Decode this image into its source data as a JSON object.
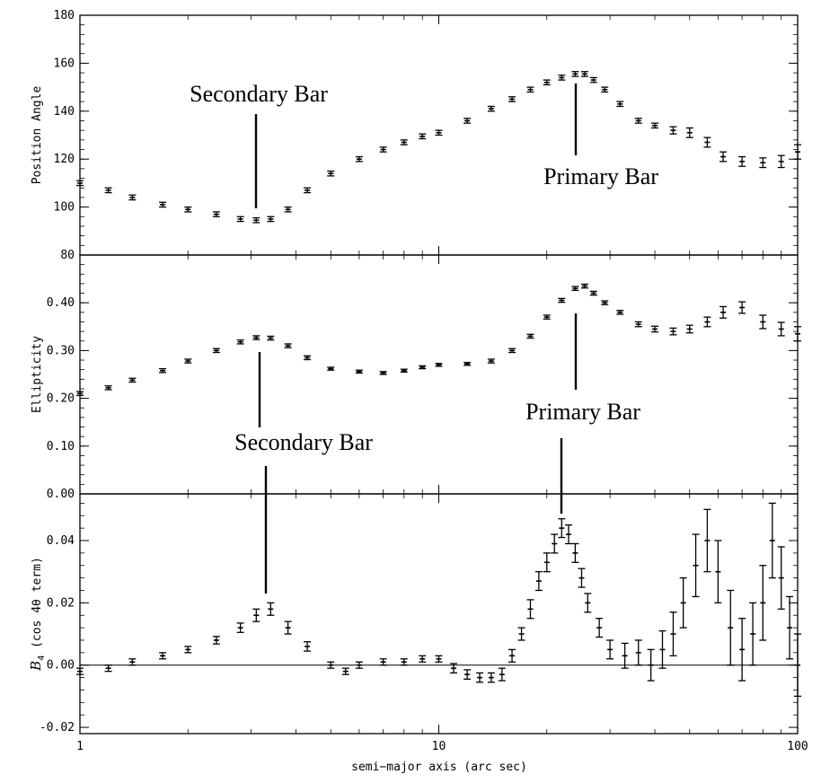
{
  "chart_data": [
    {
      "type": "scatter",
      "panel": "top",
      "ylabel": "Position Angle",
      "xlabel": "",
      "xscale": "log",
      "xlim": [
        1,
        100
      ],
      "ylim": [
        80,
        180
      ],
      "yticks": [
        "80",
        "100",
        "120",
        "140",
        "160",
        "180"
      ],
      "annotations": [
        {
          "text": "Secondary Bar",
          "x": 3.1,
          "y": 100,
          "anchor_y": 157
        },
        {
          "text": "Primary Bar",
          "x": 25,
          "y": 138,
          "anchor_y": 120
        }
      ],
      "series": [
        {
          "x": [
            1.0,
            1.2,
            1.4,
            1.7,
            2.0,
            2.4,
            2.8,
            3.1,
            3.4,
            3.8,
            4.3,
            5.0,
            6.0,
            7.0,
            8.0,
            9.0,
            10.0,
            12.0,
            14.0,
            16.0,
            18.0,
            20.0,
            22.0,
            24.0,
            25.5,
            27.0,
            29.0,
            32.0,
            36.0,
            40.0,
            45.0,
            50.0,
            56.0,
            62.0,
            70.0,
            80.0,
            90.0,
            100.0
          ],
          "y": [
            110,
            107,
            104,
            101,
            99,
            97,
            95,
            94.5,
            95,
            99,
            107,
            114,
            120,
            124,
            127,
            129.5,
            131,
            136,
            141,
            145,
            149,
            152,
            154,
            155.5,
            155.5,
            153,
            149,
            143,
            136,
            134,
            132,
            131,
            127,
            121,
            119,
            118.5,
            119,
            123
          ],
          "err": [
            1,
            1,
            1,
            1,
            1,
            1,
            1,
            1,
            1,
            1,
            1,
            1,
            1,
            1,
            1,
            1,
            1,
            1,
            1,
            1,
            1,
            1,
            1,
            1,
            1,
            1,
            1,
            1,
            1,
            1,
            1.5,
            2,
            2,
            2,
            2,
            2,
            2.5,
            3
          ]
        }
      ]
    },
    {
      "type": "scatter",
      "panel": "middle",
      "ylabel": "Ellipticity",
      "xlabel": "",
      "xscale": "log",
      "xlim": [
        1,
        100
      ],
      "ylim": [
        0.0,
        0.5
      ],
      "yticks": [
        "0.00",
        "0.10",
        "0.20",
        "0.30",
        "0.40"
      ],
      "annotations": [
        {
          "text": "Secondary Bar",
          "x": 3.1,
          "y": 0.14,
          "anchor_y": 0.3
        },
        {
          "text": "Primary Bar",
          "x": 25,
          "y": 0.22,
          "anchor_y": 0.38
        }
      ],
      "series": [
        {
          "x": [
            1.0,
            1.2,
            1.4,
            1.7,
            2.0,
            2.4,
            2.8,
            3.1,
            3.4,
            3.8,
            4.3,
            5.0,
            6.0,
            7.0,
            8.0,
            9.0,
            10.0,
            12.0,
            14.0,
            16.0,
            18.0,
            20.0,
            22.0,
            24.0,
            25.5,
            27.0,
            29.0,
            32.0,
            36.0,
            40.0,
            45.0,
            50.0,
            56.0,
            62.0,
            70.0,
            80.0,
            90.0,
            100.0
          ],
          "y": [
            0.21,
            0.222,
            0.238,
            0.258,
            0.278,
            0.3,
            0.318,
            0.327,
            0.326,
            0.31,
            0.285,
            0.262,
            0.256,
            0.253,
            0.258,
            0.265,
            0.27,
            0.272,
            0.278,
            0.3,
            0.33,
            0.37,
            0.405,
            0.43,
            0.435,
            0.42,
            0.4,
            0.38,
            0.355,
            0.345,
            0.34,
            0.345,
            0.36,
            0.38,
            0.39,
            0.36,
            0.345,
            0.335
          ],
          "err": [
            0.004,
            0.004,
            0.004,
            0.004,
            0.004,
            0.004,
            0.004,
            0.004,
            0.004,
            0.004,
            0.004,
            0.003,
            0.003,
            0.003,
            0.003,
            0.003,
            0.003,
            0.003,
            0.004,
            0.004,
            0.004,
            0.004,
            0.004,
            0.004,
            0.004,
            0.004,
            0.004,
            0.004,
            0.005,
            0.006,
            0.007,
            0.008,
            0.01,
            0.012,
            0.012,
            0.014,
            0.014,
            0.015
          ]
        }
      ]
    },
    {
      "type": "scatter",
      "panel": "bottom",
      "ylabel": "B4 (cos 4θ term)",
      "ylabel_main": "B",
      "ylabel_sub": "4",
      "ylabel_rest": " (cos 4θ term)",
      "xlabel": "semi−major axis (arc sec)",
      "xscale": "log",
      "xlim": [
        1,
        100
      ],
      "xticks": [
        "1",
        "10",
        "100"
      ],
      "ylim": [
        -0.022,
        0.055
      ],
      "yticks": [
        "-0.02",
        "0.00",
        "0.02",
        "0.04"
      ],
      "zero_line": true,
      "annotations": [
        {
          "text": "",
          "x": 3.35,
          "y": 0.027,
          "anchor_y": 0.07
        },
        {
          "text": "",
          "x": 22,
          "y": 0.054,
          "anchor_y": 0.08
        }
      ],
      "series": [
        {
          "x": [
            1.0,
            1.2,
            1.4,
            1.7,
            2.0,
            2.4,
            2.8,
            3.1,
            3.4,
            3.8,
            4.3,
            5.0,
            5.5,
            6.0,
            7.0,
            8.0,
            9.0,
            10.0,
            11.0,
            12.0,
            13.0,
            14.0,
            15.0,
            16.0,
            17.0,
            18.0,
            19.0,
            20.0,
            21.0,
            22.0,
            23.0,
            24.0,
            25.0,
            26.0,
            28.0,
            30.0,
            33.0,
            36.0,
            39.0,
            42.0,
            45.0,
            48.0,
            52.0,
            56.0,
            60.0,
            65.0,
            70.0,
            75.0,
            80.0,
            85.0,
            90.0,
            95.0,
            100.0
          ],
          "y": [
            -0.002,
            -0.001,
            0.001,
            0.003,
            0.005,
            0.008,
            0.012,
            0.016,
            0.018,
            0.012,
            0.006,
            0.0,
            -0.002,
            0.0,
            0.001,
            0.001,
            0.002,
            0.002,
            -0.001,
            -0.003,
            -0.004,
            -0.004,
            -0.003,
            0.003,
            0.01,
            0.018,
            0.027,
            0.033,
            0.039,
            0.044,
            0.042,
            0.036,
            0.028,
            0.02,
            0.012,
            0.005,
            0.003,
            0.004,
            0.0,
            0.005,
            0.01,
            0.02,
            0.032,
            0.04,
            0.03,
            0.012,
            0.005,
            0.01,
            0.02,
            0.04,
            0.028,
            0.012,
            0.0
          ],
          "err": [
            0.001,
            0.001,
            0.001,
            0.001,
            0.001,
            0.0012,
            0.0015,
            0.002,
            0.002,
            0.002,
            0.0015,
            0.001,
            0.001,
            0.001,
            0.001,
            0.001,
            0.001,
            0.001,
            0.0015,
            0.0015,
            0.0015,
            0.0015,
            0.002,
            0.002,
            0.002,
            0.003,
            0.003,
            0.003,
            0.003,
            0.003,
            0.003,
            0.003,
            0.003,
            0.003,
            0.003,
            0.003,
            0.004,
            0.004,
            0.005,
            0.006,
            0.007,
            0.008,
            0.01,
            0.01,
            0.01,
            0.012,
            0.01,
            0.01,
            0.012,
            0.012,
            0.01,
            0.01,
            0.01
          ]
        }
      ]
    }
  ]
}
